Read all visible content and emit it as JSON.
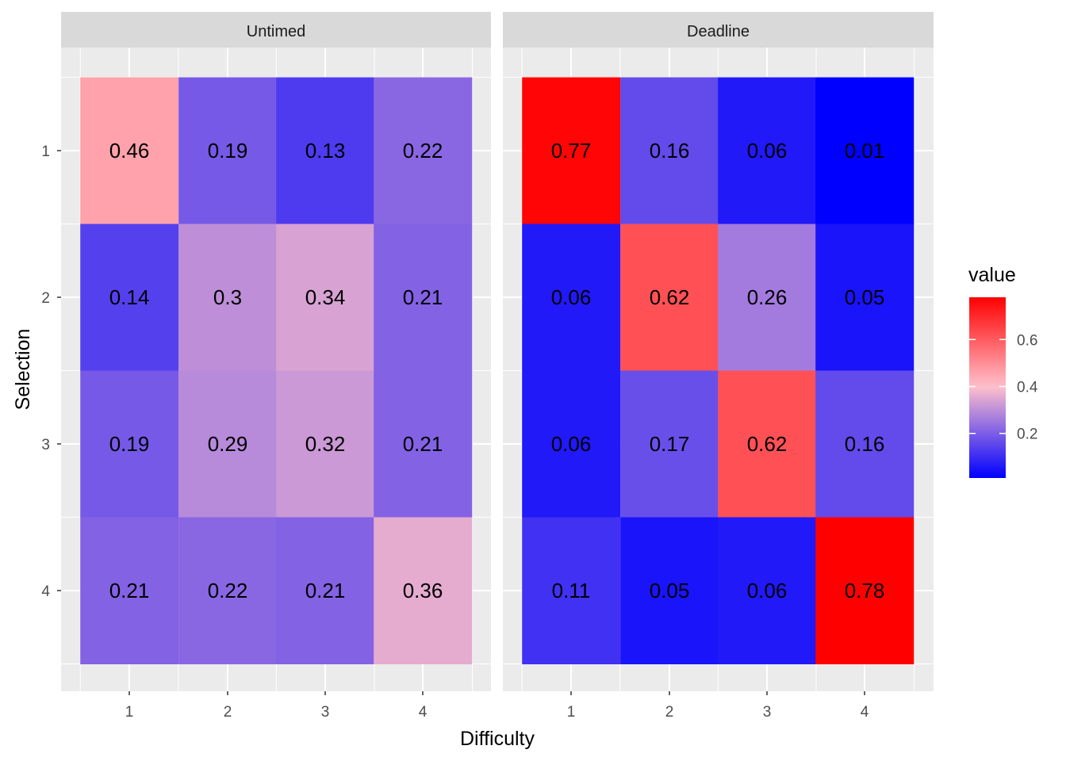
{
  "chart_data": {
    "type": "heatmap",
    "xlabel": "Difficulty",
    "ylabel": "Selection",
    "x_categories": [
      "1",
      "2",
      "3",
      "4"
    ],
    "y_categories": [
      "1",
      "2",
      "3",
      "4"
    ],
    "facets": [
      {
        "name": "Untimed",
        "values": [
          [
            0.46,
            0.19,
            0.13,
            0.22
          ],
          [
            0.14,
            0.3,
            0.34,
            0.21
          ],
          [
            0.19,
            0.29,
            0.32,
            0.21
          ],
          [
            0.21,
            0.22,
            0.21,
            0.36
          ]
        ]
      },
      {
        "name": "Deadline",
        "values": [
          [
            0.77,
            0.16,
            0.06,
            0.01
          ],
          [
            0.06,
            0.62,
            0.26,
            0.05
          ],
          [
            0.06,
            0.17,
            0.62,
            0.16
          ],
          [
            0.11,
            0.05,
            0.06,
            0.78
          ]
        ]
      }
    ],
    "legend": {
      "title": "value",
      "placement": "right",
      "ticks": [
        0.2,
        0.4,
        0.6
      ],
      "range": [
        0.01,
        0.78
      ],
      "colors": {
        "low": "#0000ff",
        "mid": "#ffc0cb",
        "high": "#ff0000",
        "midpoint": 0.4
      }
    },
    "panel_background": "#ebebeb",
    "strip_background": "#d9d9d9",
    "grid": true
  }
}
